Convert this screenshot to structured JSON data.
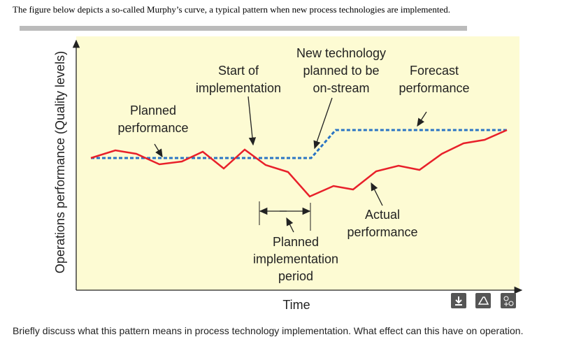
{
  "question": {
    "intro": "The figure below depicts a so-called Murphy’s curve, a typical pattern when new process technologies are implemented.",
    "prompt": "Briefly discuss what this pattern means in process technology implementation. What effect can this have on operation."
  },
  "figure": {
    "y_axis_label": "Operations performance (Quality levels)",
    "x_axis_label": "Time",
    "annotations": [
      {
        "lines": [
          "New technology",
          "planned to be",
          "on-stream"
        ]
      },
      {
        "lines": [
          "Start of",
          "implementation"
        ]
      },
      {
        "lines": [
          "Forecast",
          "performance"
        ]
      },
      {
        "lines": [
          "Planned",
          "performance"
        ]
      },
      {
        "lines": [
          "Actual",
          "performance"
        ]
      },
      {
        "lines": [
          "Planned",
          "implementation",
          "period"
        ]
      }
    ]
  }
}
